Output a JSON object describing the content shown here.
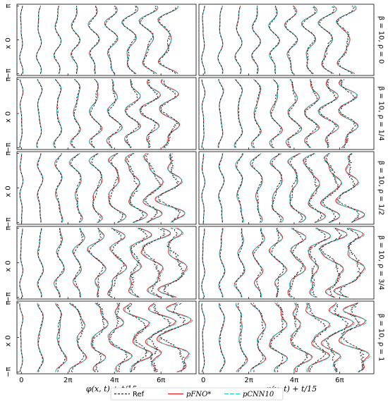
{
  "chart_data": {
    "type": "line",
    "layout": "5 rows x 2 columns of panels",
    "xlabel": "φ(x, t) + t/15",
    "ylabel": "x",
    "x_ticks": [
      "0",
      "2π",
      "4π",
      "6π"
    ],
    "x_tick_values": [
      0,
      6.2832,
      12.5664,
      18.8496
    ],
    "xlim": [
      -0.6,
      23.6
    ],
    "y_ticks": [
      "−π",
      "0",
      "π"
    ],
    "y_tick_values": [
      -3.1416,
      0,
      3.1416
    ],
    "ylim": [
      -3.3,
      3.3
    ],
    "row_labels": [
      "β = 10, ρ = 0",
      "β = 10, ρ = 1/4",
      "β = 10, ρ = 1/2",
      "β = 10, ρ = 3/4",
      "β = 10, ρ = 1"
    ],
    "rho": [
      0,
      0.25,
      0.5,
      0.75,
      1
    ],
    "snapshot_offsets": [
      0,
      2.4,
      4.9,
      7.3,
      9.8,
      12.2,
      14.7,
      17.1,
      19.6
    ],
    "series": [
      {
        "name": "Ref",
        "color": "#222222",
        "dash": "3,2"
      },
      {
        "name": "pFNO*",
        "color": "#e3211c",
        "dash": ""
      },
      {
        "name": "pCNN10",
        "color": "#27c7cc",
        "dash": "6,2"
      }
    ],
    "legend_position": "bottom-center",
    "grid": false
  }
}
